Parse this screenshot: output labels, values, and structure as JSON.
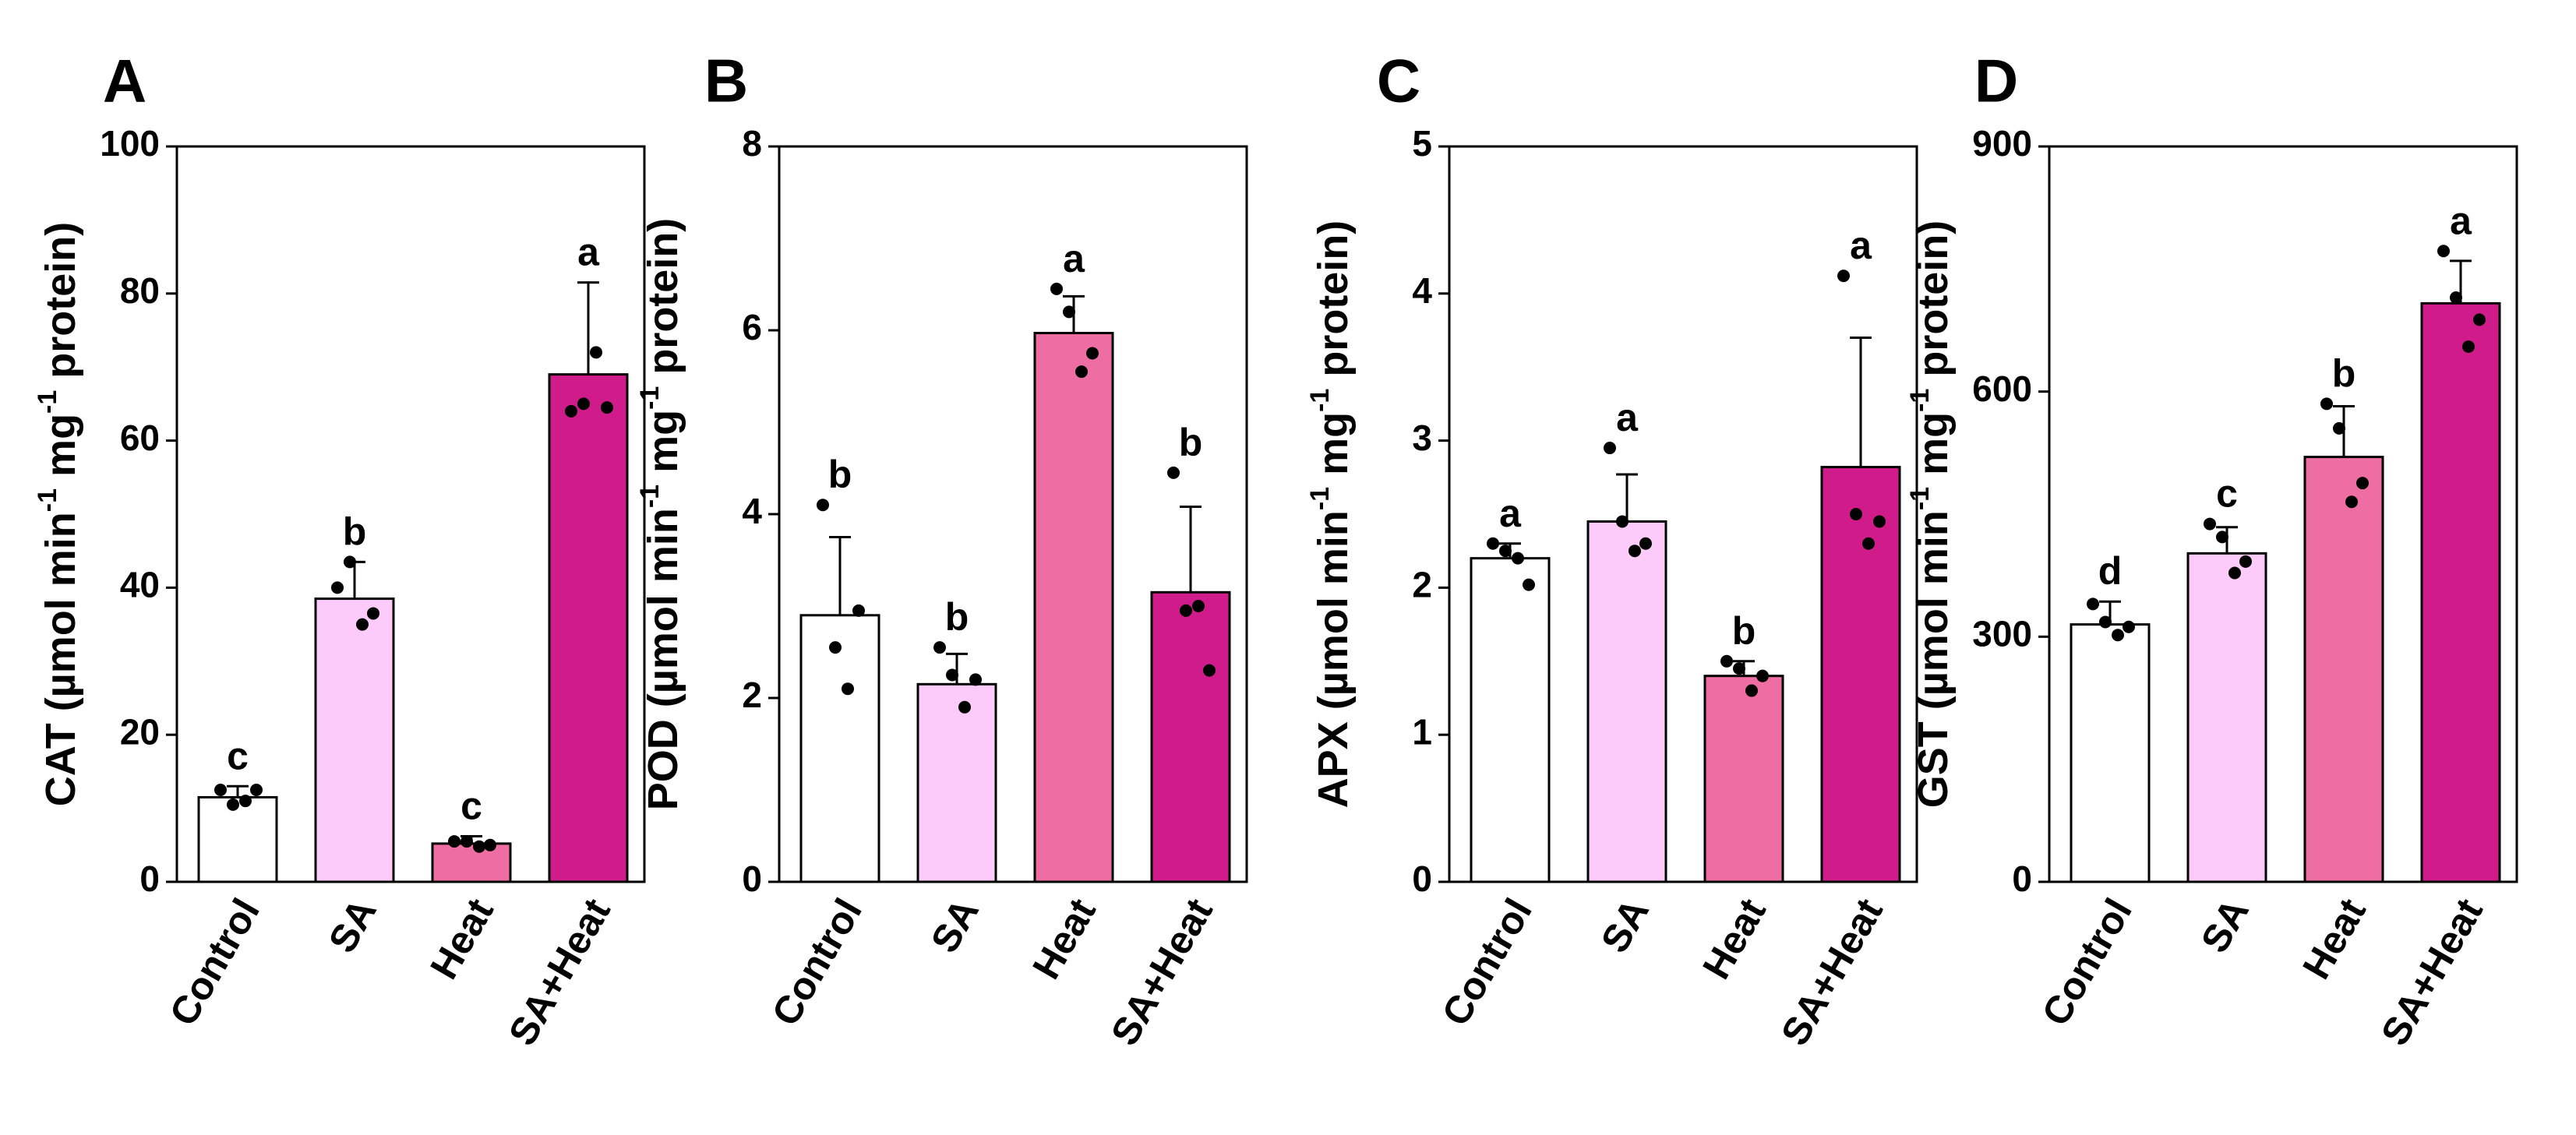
{
  "colors": {
    "control": "#ffffff",
    "sa": "#fccbf9",
    "heat": "#ee6da3",
    "sa_heat": "#d01c8b",
    "stroke": "#000000"
  },
  "chart_data": [
    {
      "type": "bar",
      "panel": "A",
      "ylabel_parts": [
        "CAT (µmol min",
        "-1",
        " mg",
        "-1",
        " protein)"
      ],
      "ylim": [
        0,
        100
      ],
      "yticks": [
        "0",
        "20",
        "40",
        "60",
        "80",
        "100"
      ],
      "categories": [
        "Control",
        "SA",
        "Heat",
        "SA+Heat"
      ],
      "values": [
        11.5,
        38.5,
        5.2,
        69
      ],
      "error_upper": [
        1.5,
        5,
        1,
        12.5
      ],
      "letters": [
        "c",
        "b",
        "c",
        "a"
      ],
      "points": [
        [
          12.5,
          10.5,
          11,
          12.5
        ],
        [
          40,
          43.5,
          35,
          36.5
        ],
        [
          5.5,
          5.5,
          4.8,
          5
        ],
        [
          64,
          65,
          72,
          64.5
        ]
      ],
      "grid": false
    },
    {
      "type": "bar",
      "panel": "B",
      "ylabel_parts": [
        "POD (µmol min",
        "-1",
        " mg",
        "-1",
        " protein)"
      ],
      "ylim": [
        0,
        8
      ],
      "yticks": [
        "0",
        "2",
        "4",
        "6",
        "8"
      ],
      "categories": [
        "Control",
        "SA",
        "Heat",
        "SA+Heat"
      ],
      "values": [
        2.9,
        2.15,
        5.97,
        3.15
      ],
      "error_upper": [
        0.85,
        0.33,
        0.4,
        0.93
      ],
      "letters": [
        "b",
        "b",
        "a",
        "b"
      ],
      "points": [
        [
          4.1,
          2.55,
          2.1,
          2.95
        ],
        [
          2.55,
          2.25,
          1.9,
          2.2
        ],
        [
          6.45,
          6.2,
          5.55,
          5.75
        ],
        [
          4.45,
          2.95,
          3.0,
          2.3
        ]
      ],
      "grid": false
    },
    {
      "type": "bar",
      "panel": "C",
      "ylabel_parts": [
        "APX (µmol min",
        "-1",
        " mg",
        "-1",
        " protein)"
      ],
      "ylim": [
        0,
        5
      ],
      "yticks": [
        "0",
        "1",
        "2",
        "3",
        "4",
        "5"
      ],
      "categories": [
        "Control",
        "SA",
        "Heat",
        "SA+Heat"
      ],
      "values": [
        2.2,
        2.45,
        1.4,
        2.82
      ],
      "error_upper": [
        0.1,
        0.32,
        0.1,
        0.88
      ],
      "letters": [
        "a",
        "a",
        "b",
        "a"
      ],
      "points": [
        [
          2.3,
          2.25,
          2.2,
          2.02
        ],
        [
          2.95,
          2.45,
          2.25,
          2.3
        ],
        [
          1.5,
          1.45,
          1.3,
          1.4
        ],
        [
          4.12,
          2.5,
          2.3,
          2.45
        ]
      ],
      "grid": false
    },
    {
      "type": "bar",
      "panel": "D",
      "ylabel_parts": [
        "GST (µmol min",
        "-1",
        " mg",
        "-1",
        " protein)"
      ],
      "ylim": [
        0,
        900
      ],
      "yticks": [
        "0",
        "300",
        "600",
        "900"
      ],
      "categories": [
        "Control",
        "SA",
        "Heat",
        "SA+Heat"
      ],
      "values": [
        315,
        402,
        520,
        708
      ],
      "error_upper": [
        28,
        32,
        62,
        52
      ],
      "letters": [
        "d",
        "c",
        "b",
        "a"
      ],
      "points": [
        [
          340,
          318,
          302,
          312
        ],
        [
          438,
          422,
          378,
          392
        ],
        [
          585,
          555,
          465,
          488
        ],
        [
          772,
          715,
          655,
          688
        ]
      ],
      "grid": false
    }
  ]
}
